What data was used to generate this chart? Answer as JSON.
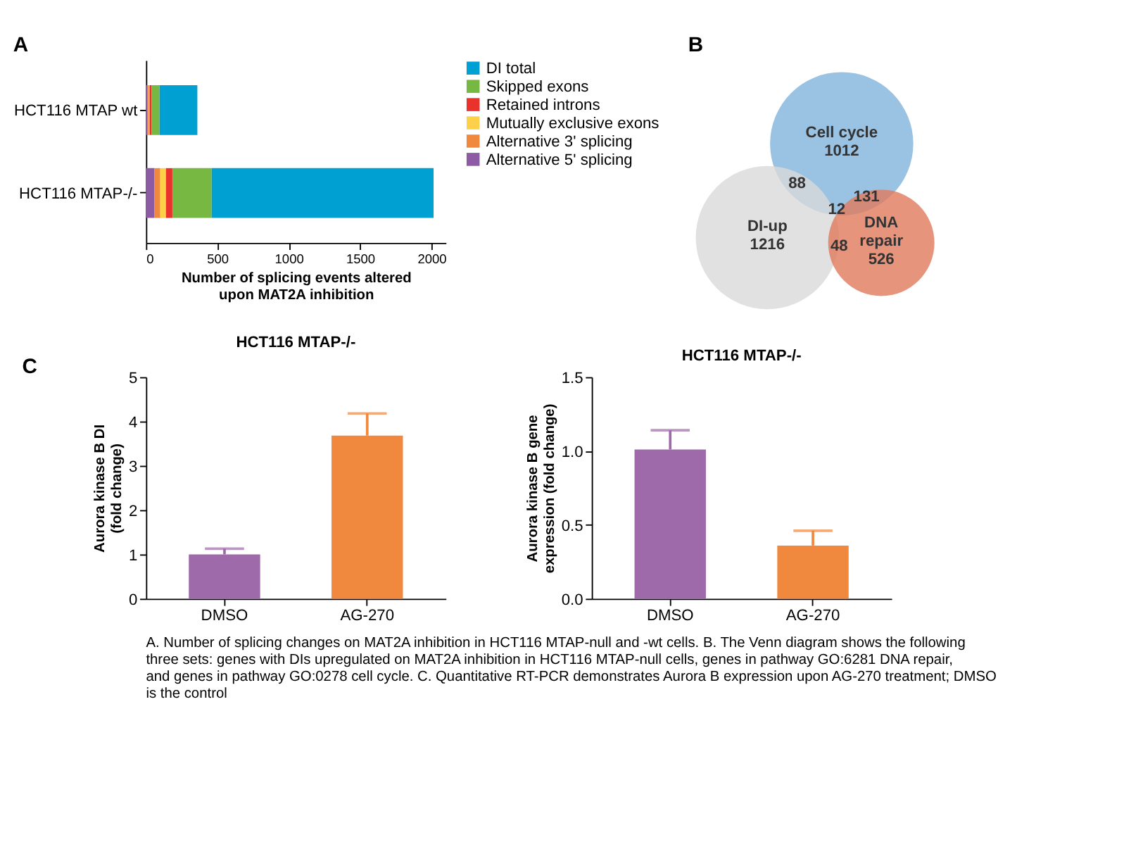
{
  "chart_data": [
    {
      "type": "bar",
      "title": "A",
      "orientation": "horizontal",
      "stacked": true,
      "legend": "right",
      "categories": [
        "HCT116 MTAP wt",
        "HCT116 MTAP-/-"
      ],
      "xlabel": "Number of splicing events altered upon MAT2A inhibition",
      "xlim": [
        0,
        2100
      ],
      "xticks": [
        0,
        500,
        1000,
        1500,
        2000
      ],
      "series": [
        {
          "name": "Alternative 5' splicing",
          "color": "#8d5ba3",
          "values": [
            10,
            60
          ]
        },
        {
          "name": "Alternative 3' splicing",
          "color": "#f0883d",
          "values": [
            10,
            40
          ]
        },
        {
          "name": "Mutually exclusive exons",
          "color": "#fdd04a",
          "values": [
            5,
            40
          ]
        },
        {
          "name": "Retained introns",
          "color": "#e8322b",
          "values": [
            15,
            45
          ]
        },
        {
          "name": "Skipped exons",
          "color": "#77b843",
          "values": [
            55,
            275
          ]
        },
        {
          "name": "DI total",
          "color": "#00a0d2",
          "values": [
            265,
            1555
          ]
        }
      ]
    },
    {
      "type": "other",
      "title": "B",
      "categories": [
        "Cell cycle",
        "DI-up",
        "DNA repair"
      ],
      "values": [
        1012,
        1216,
        526
      ],
      "data_labels": true,
      "annotations": [
        "88",
        "12",
        "131",
        "48"
      ],
      "colors": [
        "#7fb3dc",
        "#d9d9d9",
        "#e07b5b"
      ]
    },
    {
      "type": "bar",
      "title": "HCT116 MTAP-/-",
      "ylabel": "Aurora kinase B DI (fold change)",
      "annotations": [
        "C"
      ],
      "categories": [
        "DMSO",
        "AG-270"
      ],
      "values": [
        1.0,
        3.68
      ],
      "colors": [
        "#9e6aaa",
        "#f0883d"
      ],
      "errors": [
        [
          1.0,
          1.13
        ],
        [
          3.68,
          4.18
        ]
      ],
      "ylim": [
        0,
        5
      ],
      "yticks": [
        0,
        1,
        2,
        3,
        4,
        5
      ]
    },
    {
      "type": "bar",
      "title": "HCT116 MTAP-/-",
      "ylabel": "Aurora kinase B gene expression (fold change)",
      "annotations": [
        "A. Number of splicing changes on MAT2A inhibition in HCT116 MTAP-null and -wt cells. B. The Venn diagram shows the following three sets: genes with DIs upregulated on MAT2A inhibition in HCT116 MTAP-null cells, genes in pathway GO:6281 DNA repair, and genes in pathway GO:0278 cell cycle. C. Quantitative RT-PCR demonstrates Aurora B expression upon AG-270 treatment; DMSO is the control"
      ],
      "categories": [
        "DMSO",
        "AG-270"
      ],
      "values": [
        1.01,
        0.36
      ],
      "colors": [
        "#9e6aaa",
        "#f0883d"
      ],
      "errors": [
        [
          1.01,
          1.14
        ],
        [
          0.36,
          0.46
        ]
      ],
      "ylim": [
        0,
        1.5
      ],
      "yticks": [
        {
          "value": 0,
          "label": "0.0"
        },
        0.5,
        {
          "value": 1,
          "label": "1.0"
        },
        1.5
      ]
    }
  ]
}
